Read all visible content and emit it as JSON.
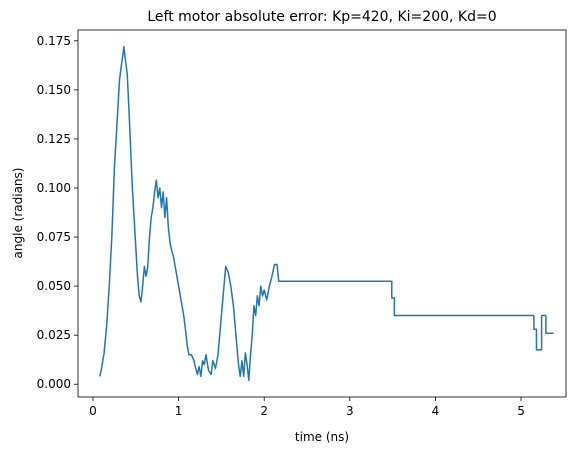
{
  "chart_data": {
    "type": "line",
    "title": "Left motor absolute error: Kp=420, Ki=200, Kd=0",
    "xlabel": "time (ns)",
    "ylabel": "angle (radians)",
    "x": [
      0.08,
      0.1,
      0.13,
      0.16,
      0.19,
      0.22,
      0.25,
      0.27,
      0.29,
      0.31,
      0.33,
      0.35,
      0.36,
      0.38,
      0.4,
      0.42,
      0.44,
      0.46,
      0.48,
      0.5,
      0.52,
      0.54,
      0.56,
      0.58,
      0.6,
      0.62,
      0.64,
      0.66,
      0.68,
      0.7,
      0.72,
      0.74,
      0.76,
      0.78,
      0.8,
      0.82,
      0.84,
      0.86,
      0.88,
      0.9,
      0.92,
      0.94,
      0.96,
      0.98,
      1.0,
      1.02,
      1.04,
      1.06,
      1.08,
      1.1,
      1.12,
      1.15,
      1.18,
      1.2,
      1.22,
      1.24,
      1.26,
      1.28,
      1.3,
      1.32,
      1.35,
      1.38,
      1.4,
      1.43,
      1.46,
      1.49,
      1.52,
      1.55,
      1.58,
      1.61,
      1.64,
      1.67,
      1.7,
      1.72,
      1.74,
      1.76,
      1.78,
      1.8,
      1.82,
      1.84,
      1.86,
      1.88,
      1.9,
      1.92,
      1.94,
      1.96,
      1.98,
      2.0,
      2.03,
      2.06,
      2.09,
      2.12,
      2.15,
      2.17,
      3.49,
      3.49,
      3.52,
      3.52,
      5.15,
      5.15,
      5.18,
      5.18,
      5.24,
      5.24,
      5.29,
      5.29,
      5.38
    ],
    "series": [
      {
        "name": "left motor",
        "color": "#1f77b4",
        "values": [
          0.004,
          0.008,
          0.016,
          0.03,
          0.05,
          0.075,
          0.11,
          0.125,
          0.14,
          0.155,
          0.162,
          0.168,
          0.172,
          0.165,
          0.158,
          0.14,
          0.12,
          0.1,
          0.085,
          0.07,
          0.055,
          0.045,
          0.042,
          0.05,
          0.06,
          0.055,
          0.06,
          0.075,
          0.085,
          0.09,
          0.098,
          0.104,
          0.095,
          0.1,
          0.09,
          0.098,
          0.085,
          0.095,
          0.08,
          0.072,
          0.068,
          0.065,
          0.06,
          0.055,
          0.05,
          0.045,
          0.04,
          0.035,
          0.028,
          0.02,
          0.015,
          0.015,
          0.012,
          0.008,
          0.005,
          0.009,
          0.004,
          0.012,
          0.01,
          0.015,
          0.007,
          0.005,
          0.012,
          0.008,
          0.015,
          0.03,
          0.045,
          0.06,
          0.057,
          0.05,
          0.04,
          0.025,
          0.01,
          0.004,
          0.012,
          0.004,
          0.016,
          0.01,
          0.002,
          0.015,
          0.025,
          0.04,
          0.035,
          0.045,
          0.04,
          0.05,
          0.045,
          0.048,
          0.043,
          0.05,
          0.055,
          0.061,
          0.061,
          0.0525,
          0.0525,
          0.044,
          0.044,
          0.035,
          0.035,
          0.028,
          0.028,
          0.0175,
          0.0175,
          0.035,
          0.035,
          0.026,
          0.026
        ]
      }
    ],
    "xlim": [
      -0.175,
      5.525
    ],
    "ylim": [
      -0.0065,
      0.1805
    ],
    "xticks": [
      0,
      1,
      2,
      3,
      4,
      5
    ],
    "yticks": [
      {
        "value": 0,
        "label": "0.000"
      },
      {
        "value": 0.025,
        "label": "0.025"
      },
      {
        "value": 0.05,
        "label": "0.050"
      },
      {
        "value": 0.075,
        "label": "0.075"
      },
      {
        "value": 0.1,
        "label": "0.100"
      },
      {
        "value": 0.125,
        "label": "0.125"
      },
      {
        "value": 0.15,
        "label": "0.150"
      },
      {
        "value": 0.175,
        "label": "0.175"
      }
    ],
    "grid": false
  }
}
